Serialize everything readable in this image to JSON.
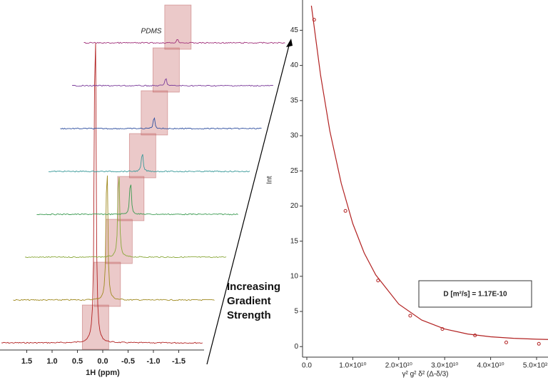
{
  "caption": "Increasing Gradient Strength",
  "chart_data": [
    {
      "type": "spectra",
      "xlabel": "1H (ppm)",
      "xlim": [
        2.0,
        -2.0
      ],
      "xticks": [
        1.5,
        {
          "value": 1,
          "label": "1.0"
        },
        0.5,
        {
          "value": 0,
          "label": "0.0"
        },
        -0.5,
        {
          "value": -1,
          "label": "-1.0"
        },
        -1.5
      ],
      "peak_ppm": 0.15,
      "annotation": "PDMS",
      "values": [
        452,
        188,
        120,
        45,
        25,
        15,
        10,
        5
      ],
      "colors": [
        "#b22222",
        "#a08a20",
        "#8aa83a",
        "#3a9a50",
        "#3a9a9a",
        "#3050a0",
        "#7a3a9a",
        "#a0307a"
      ]
    },
    {
      "type": "scatter",
      "xlabel": "γ² g² δ² (Δ-δ/3)",
      "ylabel": "Int",
      "color": "#b22222",
      "annotation": "D [m²/s] = 1.17E-10",
      "xlim": [
        -900000000.0,
        52800000000.0
      ],
      "ylim": [
        -1.5,
        48.8
      ],
      "xticks": [
        {
          "value": 0,
          "label": "0.0"
        },
        {
          "value": 10000000000.0,
          "label": "1.0×10¹⁰"
        },
        {
          "value": 20000000000.0,
          "label": "2.0×10¹⁰"
        },
        {
          "value": 30000000000.0,
          "label": "3.0×10¹⁰"
        },
        {
          "value": 40000000000.0,
          "label": "4.0×10¹⁰"
        },
        {
          "value": 50000000000.0,
          "label": "5.0×10¹⁰"
        }
      ],
      "yticks": [
        0,
        5,
        10,
        15,
        20,
        25,
        30,
        35,
        40,
        45
      ],
      "x": [
        1600000000.0,
        8400000000.0,
        15500000000.0,
        22500000000.0,
        29500000000.0,
        36600000000.0,
        43400000000.0,
        50500000000.0
      ],
      "values": [
        46.5,
        19.3,
        9.4,
        4.4,
        2.5,
        1.6,
        0.6,
        0.4
      ],
      "fit": {
        "x": [
          1000000000.0,
          3000000000.0,
          5000000000.0,
          7500000000.0,
          10000000000.0,
          12500000000.0,
          15000000000.0,
          20000000000.0,
          25000000000.0,
          30000000000.0,
          35000000000.0,
          40000000000.0,
          45000000000.0,
          50000000000.0,
          52800000000.0
        ],
        "values": [
          48.5,
          38.6,
          30.7,
          23.2,
          17.5,
          13.3,
          10.2,
          6.05,
          3.77,
          2.5,
          1.79,
          1.4,
          1.18,
          1.05,
          1.01
        ]
      }
    }
  ]
}
